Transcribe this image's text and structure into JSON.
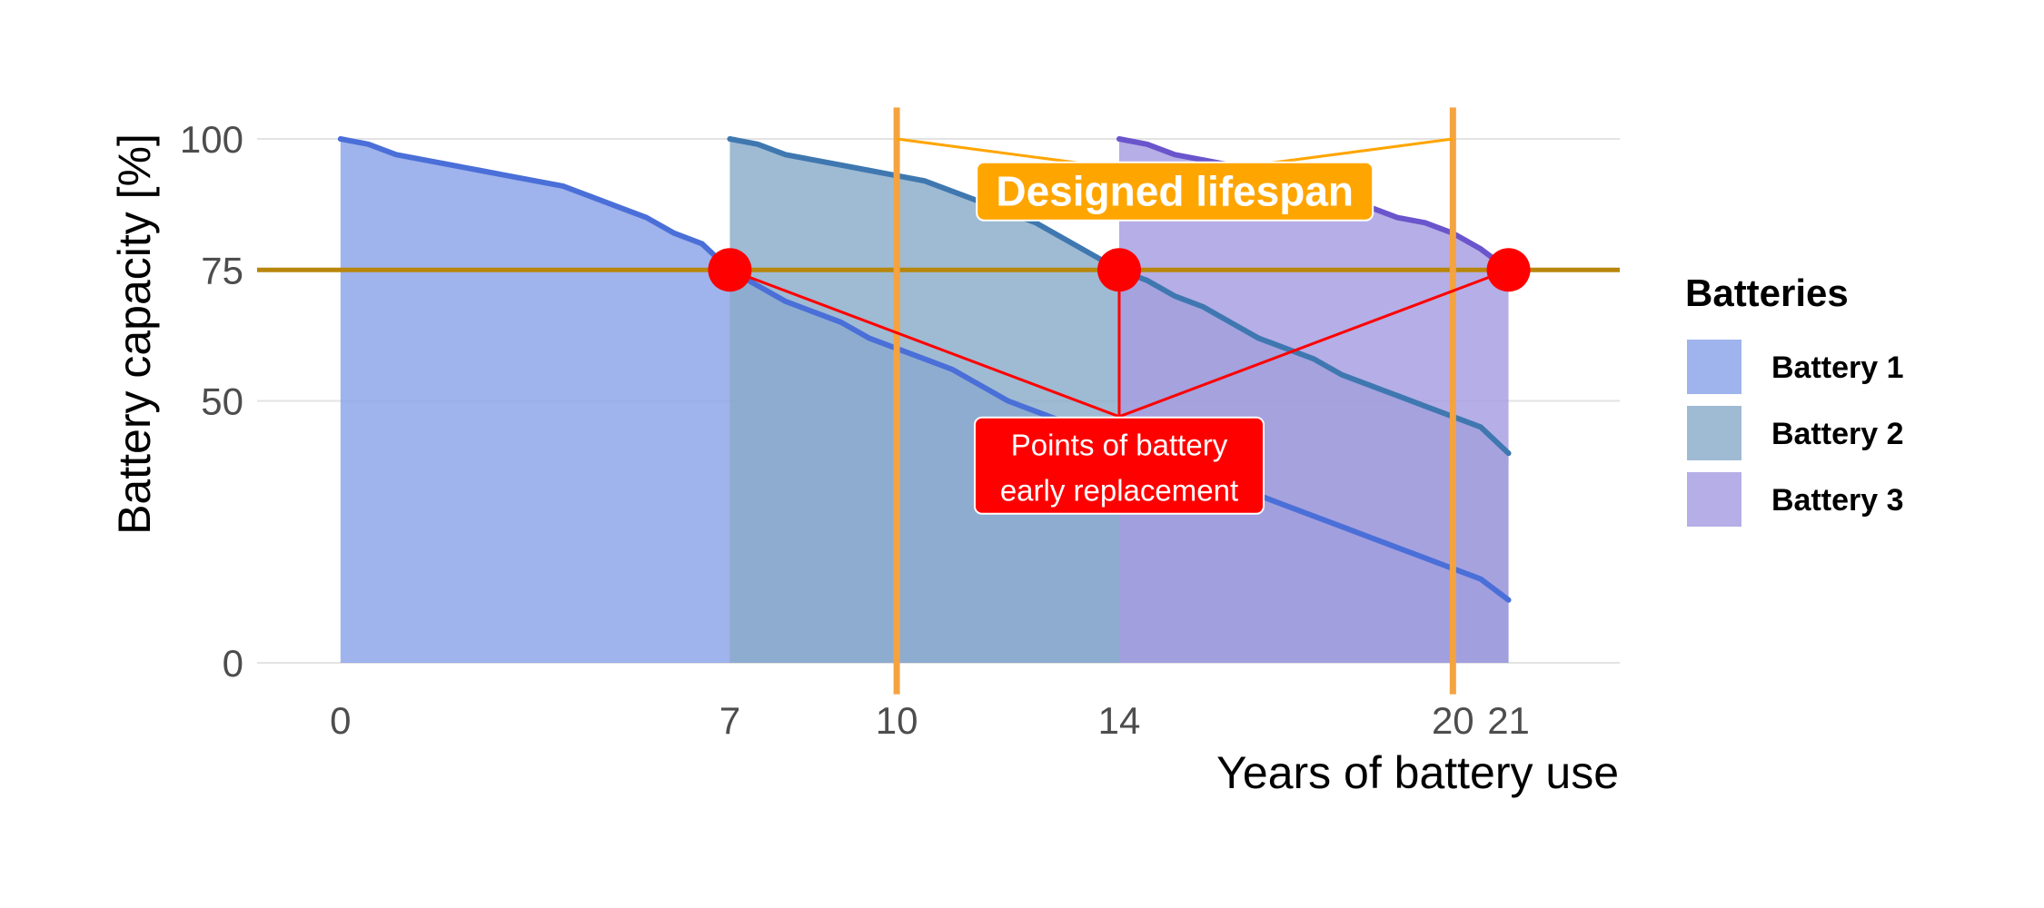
{
  "chart_data": {
    "type": "area",
    "xlabel": "Years of battery use",
    "ylabel": "Battery capacity [%]",
    "xlim": [
      -1.5,
      23
    ],
    "ylim": [
      0,
      100
    ],
    "x_ticks": [
      0,
      7,
      10,
      14,
      20,
      21
    ],
    "y_ticks": [
      0,
      50,
      75,
      100
    ],
    "grid": "horizontal",
    "legend_title": "Batteries",
    "legend_position": "right",
    "series": [
      {
        "name": "Battery 1",
        "color": "#8aa2e8",
        "line_color": "#4a6fd8",
        "x": [
          0,
          0.5,
          1,
          1.5,
          2,
          2.5,
          3,
          3.5,
          4,
          4.5,
          5,
          5.5,
          6,
          6.5,
          7,
          7.5,
          8,
          8.5,
          9,
          9.5,
          10,
          10.5,
          11,
          11.5,
          12,
          12.5,
          13,
          13.5,
          14,
          14.5,
          15,
          15.5,
          16,
          16.5,
          17,
          17.5,
          18,
          18.5,
          19,
          19.5,
          20,
          20.5,
          21
        ],
        "values": [
          100,
          99,
          97,
          96,
          95,
          94,
          93,
          92,
          91,
          89,
          87,
          85,
          82,
          80,
          75,
          72,
          69,
          67,
          65,
          62,
          60,
          58,
          56,
          53,
          50,
          48,
          46,
          44,
          42,
          40,
          38,
          36,
          34,
          32,
          30,
          28,
          26,
          24,
          22,
          20,
          18,
          16,
          12
        ]
      },
      {
        "name": "Battery 2",
        "color": "#8aabc9",
        "line_color": "#3f78b0",
        "x": [
          7,
          7.5,
          8,
          8.5,
          9,
          9.5,
          10,
          10.5,
          11,
          11.5,
          12,
          12.5,
          13,
          13.5,
          14,
          14.5,
          15,
          15.5,
          16,
          16.5,
          17,
          17.5,
          18,
          18.5,
          19,
          19.5,
          20,
          20.5,
          21
        ],
        "values": [
          100,
          99,
          97,
          96,
          95,
          94,
          93,
          92,
          90,
          88,
          86,
          84,
          81,
          78,
          75,
          73,
          70,
          68,
          65,
          62,
          60,
          58,
          55,
          53,
          51,
          49,
          47,
          45,
          40
        ]
      },
      {
        "name": "Battery 3",
        "color": "#a69ce0",
        "line_color": "#6a55cc",
        "x": [
          14,
          14.5,
          15,
          15.5,
          16,
          16.5,
          17,
          17.5,
          18,
          18.5,
          19,
          19.5,
          20,
          20.5,
          21
        ],
        "values": [
          100,
          99,
          97,
          96,
          95,
          93,
          92,
          90,
          89,
          87,
          85,
          84,
          82,
          79,
          75
        ]
      }
    ],
    "reference_lines": {
      "horizontal": {
        "y": 75,
        "color": "#b8860b"
      },
      "vertical": {
        "x": [
          10,
          20
        ],
        "color": "#f4a340"
      }
    },
    "replacement_points": [
      {
        "x": 7,
        "y": 75
      },
      {
        "x": 14,
        "y": 75
      },
      {
        "x": 21,
        "y": 75
      }
    ],
    "annotations": {
      "lifespan": {
        "text": "Designed lifespan",
        "x": 15,
        "y": 90,
        "color": "#ffa500"
      },
      "replacement": {
        "line1": "Points of battery",
        "line2": "early replacement",
        "x": 14,
        "y": 38,
        "color": "#ff0000"
      }
    }
  }
}
